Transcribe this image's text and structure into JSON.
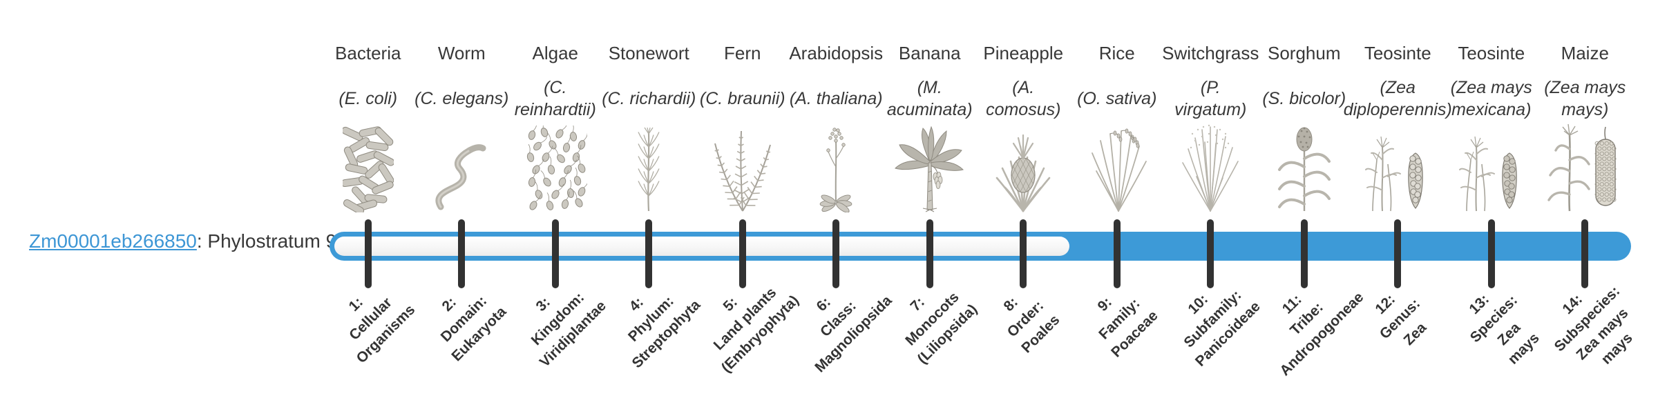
{
  "gene": {
    "id": "Zm00001eb266850",
    "suffix": ": Phylostratum 9",
    "phylostratum": 9
  },
  "timeline": {
    "total_strata": 14,
    "filled_from_stratum": 9,
    "filled_strata": [
      9,
      10,
      11,
      12,
      13,
      14
    ]
  },
  "colors": {
    "bar_blue": "#3d9ad7",
    "bar_empty": "#f4f4f4",
    "tick_dark": "#323232",
    "link_blue": "#3d96d5",
    "text": "#383838"
  },
  "organisms": [
    {
      "name": "Bacteria",
      "sci": "(E. coli)",
      "icon": "bacteria",
      "stratum_label": "1:\nCellular\nOrganisms"
    },
    {
      "name": "Worm",
      "sci": "(C. elegans)",
      "icon": "worm",
      "stratum_label": "2:\nDomain:\nEukaryota"
    },
    {
      "name": "Algae",
      "sci": "(C.\nreinhardtii)",
      "icon": "algae",
      "stratum_label": "3:\nKingdom:\nViridiplantae"
    },
    {
      "name": "Stonewort",
      "sci": "(C. richardii)",
      "icon": "stonewort",
      "stratum_label": "4:\nPhylum:\nStreptophyta"
    },
    {
      "name": "Fern",
      "sci": "(C. braunii)",
      "icon": "fern",
      "stratum_label": "5:\nLand plants\n(Embryophyta)"
    },
    {
      "name": "Arabidopsis",
      "sci": "(A. thaliana)",
      "icon": "arabidopsis",
      "stratum_label": "6:\nClass:\nMagnoliopsida"
    },
    {
      "name": "Banana",
      "sci": "(M.\nacuminata)",
      "icon": "banana",
      "stratum_label": "7:\nMonocots\n(Liliopsida)"
    },
    {
      "name": "Pineapple",
      "sci": "(A.\ncomosus)",
      "icon": "pineapple",
      "stratum_label": "8:\nOrder:\nPoales"
    },
    {
      "name": "Rice",
      "sci": "(O. sativa)",
      "icon": "rice",
      "stratum_label": "9:\nFamily:\nPoaceae"
    },
    {
      "name": "Switchgrass",
      "sci": "(P.\nvirgatum)",
      "icon": "switchgrass",
      "stratum_label": "10:\nSubfamily:\nPanicoideae"
    },
    {
      "name": "Sorghum",
      "sci": "(S. bicolor)",
      "icon": "sorghum",
      "stratum_label": "11:\nTribe:\nAndropogoneae"
    },
    {
      "name": "Teosinte",
      "sci": "(Zea\ndiploperennis)",
      "icon": "teosinte",
      "stratum_label": "12:\nGenus:\nZea"
    },
    {
      "name": "Teosinte",
      "sci": "(Zea mays\nmexicana)",
      "icon": "teosinte",
      "stratum_label": "13:\nSpecies:\nZea\nmays"
    },
    {
      "name": "Maize",
      "sci": "(Zea mays\nmays)",
      "icon": "maize",
      "stratum_label": "14:\nSubspecies:\nZea mays\nmays"
    }
  ]
}
